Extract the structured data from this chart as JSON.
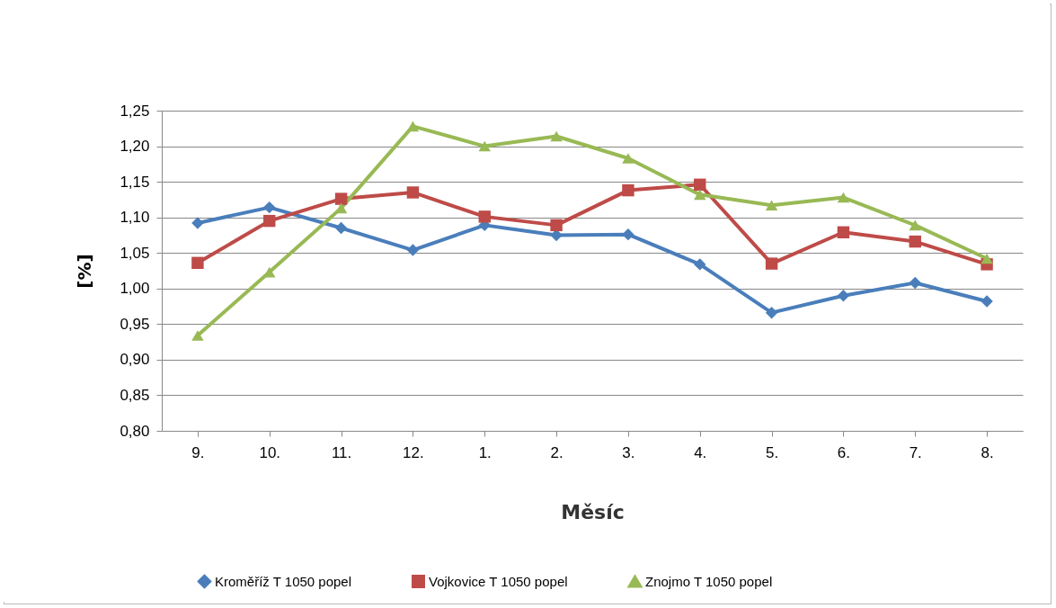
{
  "chart_data": {
    "type": "line",
    "xlabel": "Měsíc",
    "ylabel": "[%]",
    "categories": [
      "9.",
      "10.",
      "11.",
      "12.",
      "1.",
      "2.",
      "3.",
      "4.",
      "5.",
      "6.",
      "7.",
      "8."
    ],
    "series": [
      {
        "name": "Kroměříž T 1050 popel",
        "color": "#4a7ebb",
        "marker": "diamond",
        "values": [
          1.092,
          1.114,
          1.085,
          1.054,
          1.089,
          1.075,
          1.076,
          1.034,
          0.966,
          0.99,
          1.008,
          0.982
        ]
      },
      {
        "name": "Vojkovice T 1050 popel",
        "color": "#be4b48",
        "marker": "square",
        "values": [
          1.036,
          1.095,
          1.126,
          1.135,
          1.101,
          1.089,
          1.138,
          1.146,
          1.035,
          1.079,
          1.066,
          1.034
        ]
      },
      {
        "name": "Znojmo T 1050 popel",
        "color": "#98b954",
        "marker": "triangle",
        "values": [
          0.934,
          1.023,
          1.113,
          1.228,
          1.2,
          1.214,
          1.183,
          1.132,
          1.117,
          1.128,
          1.089,
          1.042
        ]
      }
    ],
    "ylim": [
      0.8,
      1.25
    ],
    "yticks": [
      {
        "value": 0.8,
        "label": "0,80"
      },
      {
        "value": 0.85,
        "label": "0,85"
      },
      {
        "value": 0.9,
        "label": "0,90"
      },
      {
        "value": 0.95,
        "label": "0,95"
      },
      {
        "value": 1.0,
        "label": "1,00"
      },
      {
        "value": 1.05,
        "label": "1,05"
      },
      {
        "value": 1.1,
        "label": "1,10"
      },
      {
        "value": 1.15,
        "label": "1,15"
      },
      {
        "value": 1.2,
        "label": "1,20"
      },
      {
        "value": 1.25,
        "label": "1,25"
      }
    ],
    "grid": "y",
    "legend": "bottom",
    "line_style": "solid"
  }
}
